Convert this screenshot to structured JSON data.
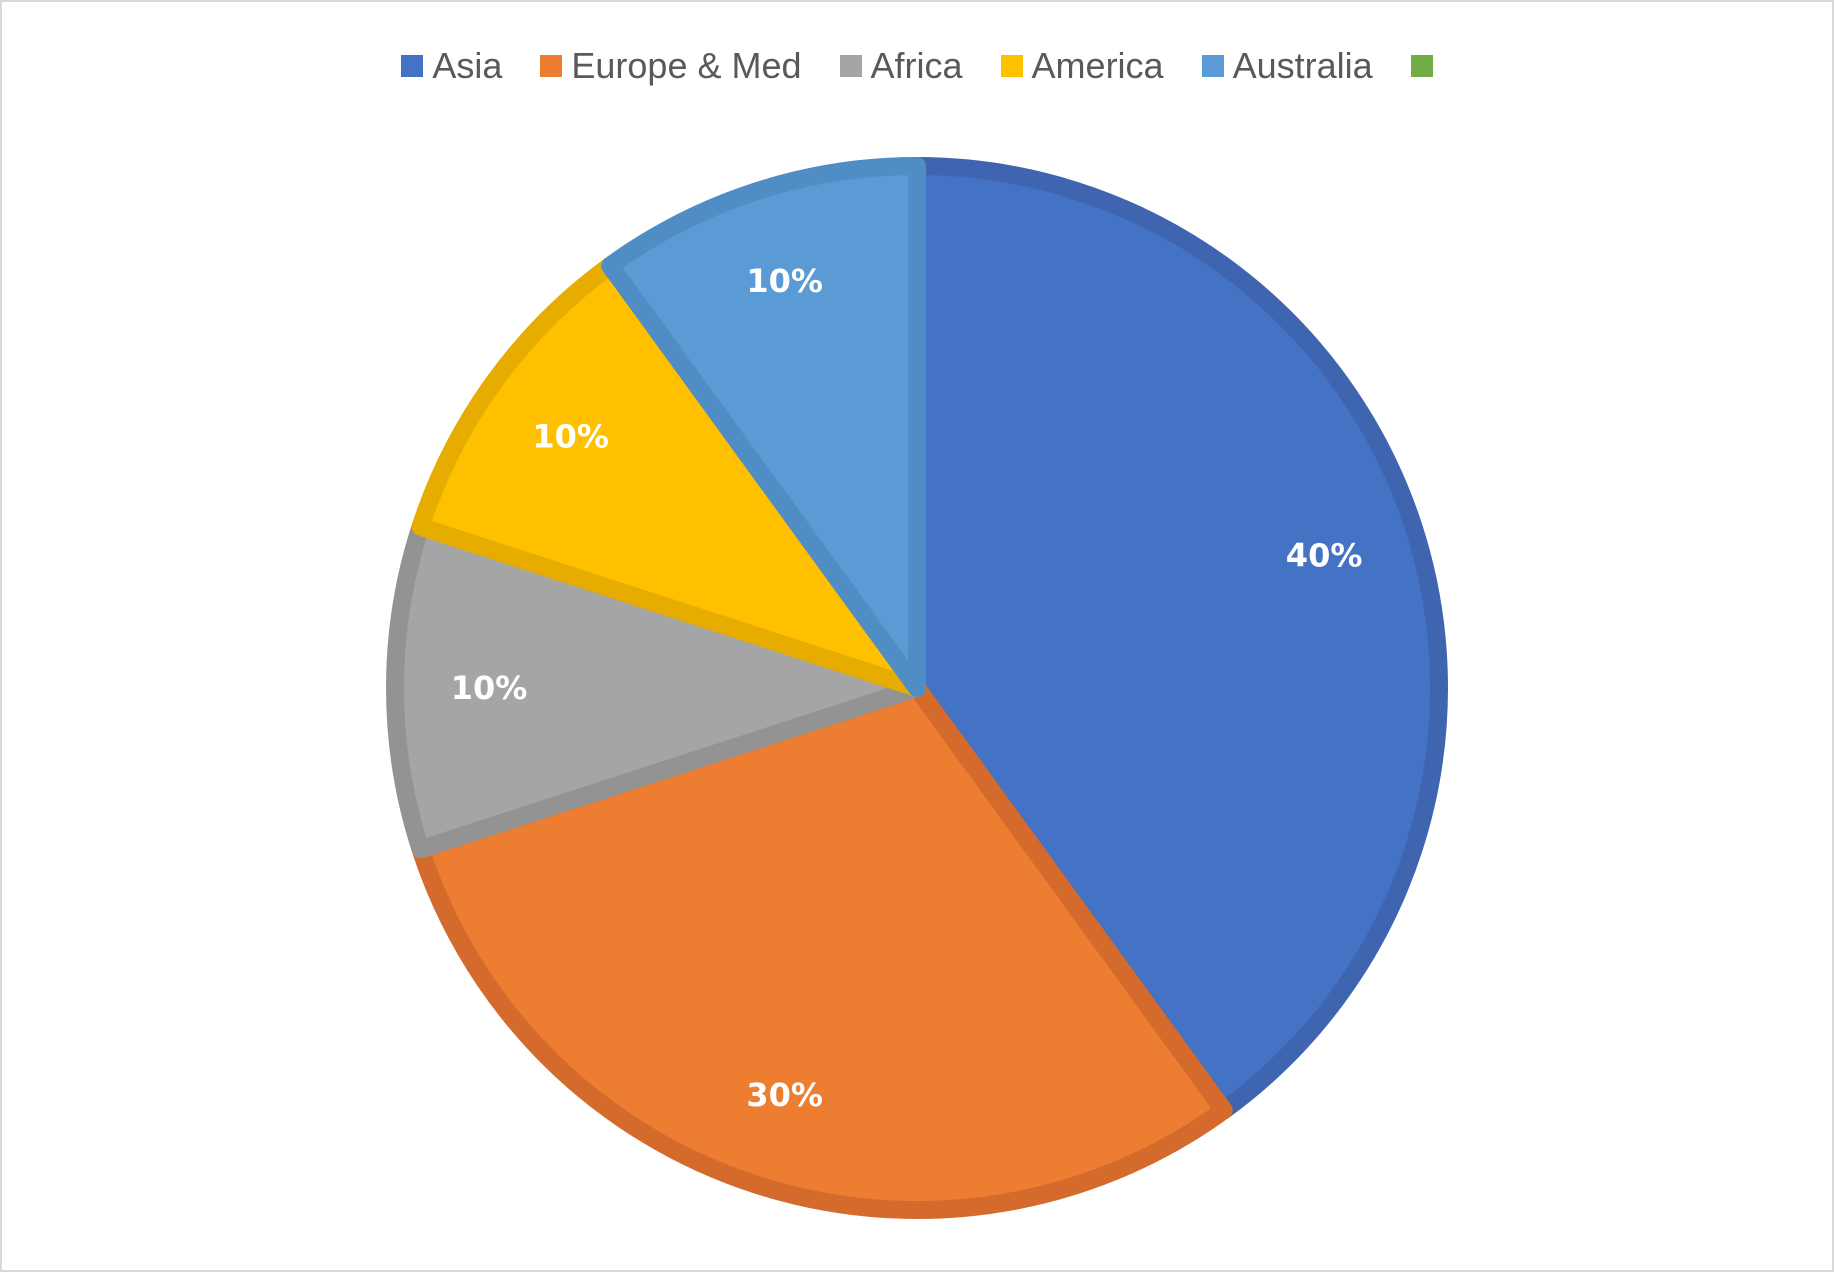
{
  "chart_data": {
    "type": "pie",
    "title": "",
    "categories": [
      "Asia",
      "Europe & Med",
      "Africa",
      "America",
      "Australia",
      ""
    ],
    "values": [
      40,
      30,
      10,
      10,
      10,
      0
    ],
    "data_labels": [
      "40%",
      "30%",
      "10%",
      "10%",
      "10%",
      ""
    ],
    "colors": [
      "#4472C4",
      "#ED7D31",
      "#A5A5A5",
      "#FFC000",
      "#5B9BD5",
      "#70AD47"
    ],
    "border_colors": [
      "#3F65B0",
      "#D46A2C",
      "#939393",
      "#E6AD00",
      "#4F8DC4",
      "#63A03F"
    ],
    "legend_position": "top",
    "start_angle_deg": 0,
    "direction": "clockwise"
  }
}
